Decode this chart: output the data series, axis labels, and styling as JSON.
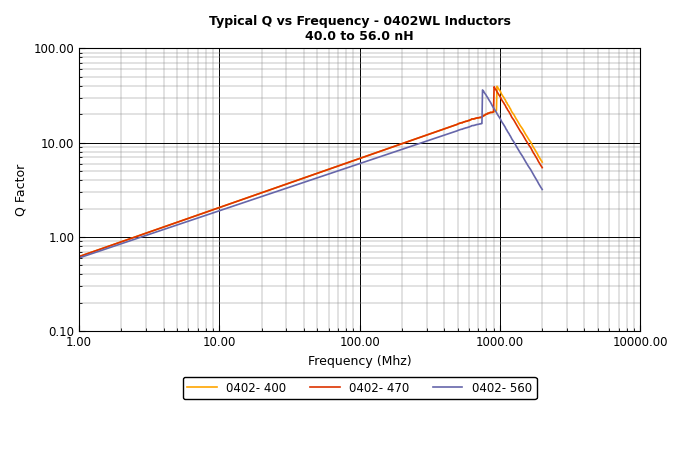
{
  "title_line1": "Typical Q vs Frequency - 0402WL Inductors",
  "title_line2": "40.0 to 56.0 nH",
  "xlabel": "Frequency (Mhz)",
  "ylabel": "Q Factor",
  "xlim": [
    1.0,
    10000.0
  ],
  "ylim": [
    0.1,
    100.0
  ],
  "colors": {
    "0402-400": "#FFA500",
    "0402-470": "#DD3300",
    "0402-560": "#6666AA"
  },
  "legend_labels": [
    "0402- 400",
    "0402- 470",
    "0402- 560"
  ],
  "background_color": "#ffffff"
}
